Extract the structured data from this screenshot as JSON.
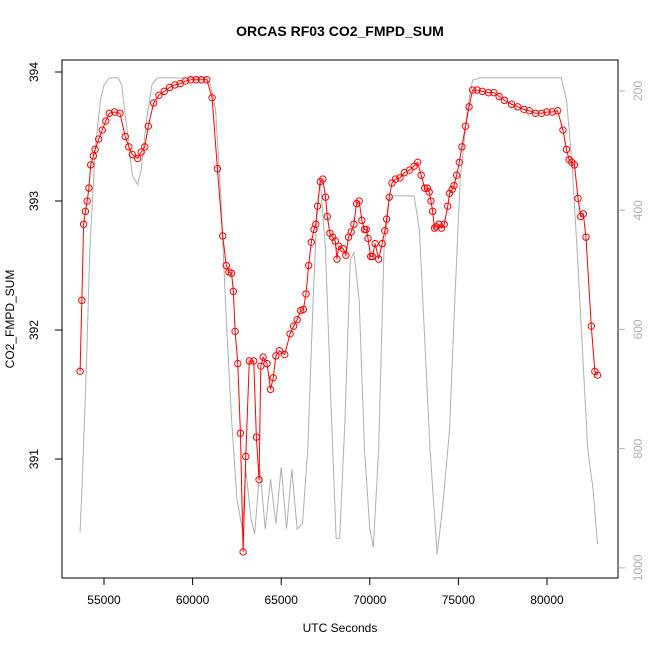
{
  "chart_data": {
    "type": "line",
    "title": "ORCAS RF03 CO2_FMPD_SUM",
    "xlabel": "UTC Seconds",
    "ylabel": "CO2_FMPD_SUM",
    "xlim": [
      52630,
      84007
    ],
    "ylim": [
      390.078,
      394.093
    ],
    "y2lim": [
      1017,
      148
    ],
    "xticks": [
      55000,
      60000,
      65000,
      70000,
      75000,
      80000
    ],
    "yticks": [
      391,
      392,
      393,
      394
    ],
    "y2ticks": [
      200,
      400,
      600,
      800,
      1000
    ],
    "series": [
      {
        "color": "#b0b0b0",
        "axis": "y2",
        "x": [
          53650,
          53800,
          54000,
          54200,
          54500,
          54800,
          55000,
          55300,
          55800,
          56000,
          56300,
          56600,
          56900,
          57100,
          57400,
          57700,
          58000,
          60800,
          61000,
          61300,
          61600,
          61900,
          62200,
          62500,
          62800,
          63000,
          63300,
          63500,
          63800,
          64100,
          64400,
          64700,
          65000,
          65300,
          65600,
          65900,
          66200,
          66500,
          66800,
          67000,
          67200,
          67500,
          67800,
          68100,
          68300,
          68600,
          68900,
          69100,
          69400,
          69700,
          70000,
          70200,
          70500,
          70800,
          71100,
          71300,
          72500,
          72800,
          73100,
          73400,
          73800,
          74100,
          74500,
          74800,
          75100,
          75500,
          75800,
          76200,
          80800,
          81100,
          81400,
          81700,
          82000,
          82300,
          82600,
          82850
        ],
        "values": [
          940,
          834,
          667,
          466,
          299,
          215,
          190,
          178,
          178,
          190,
          265,
          341,
          357,
          332,
          249,
          190,
          178,
          178,
          190,
          232,
          382,
          583,
          751,
          884,
          935,
          834,
          918,
          943,
          834,
          935,
          851,
          926,
          831,
          935,
          834,
          935,
          926,
          801,
          550,
          416,
          349,
          466,
          717,
          951,
          951,
          751,
          483,
          471,
          550,
          801,
          935,
          965,
          801,
          466,
          382,
          376,
          376,
          433,
          617,
          801,
          977,
          901,
          768,
          550,
          349,
          232,
          182,
          178,
          178,
          215,
          316,
          466,
          634,
          801,
          868,
          960
        ]
      },
      {
        "name": "CO2_FMPD_SUM",
        "color": "#ff0000",
        "axis": "y",
        "marker": "circle",
        "x": [
          53650,
          53750,
          53850,
          53950,
          54050,
          54150,
          54250,
          54400,
          54500,
          54700,
          54900,
          55100,
          55300,
          55600,
          55900,
          56200,
          56400,
          56600,
          56900,
          57100,
          57300,
          57500,
          57800,
          58100,
          58400,
          58700,
          59000,
          59300,
          59600,
          59900,
          60200,
          60500,
          60800,
          61100,
          61400,
          61700,
          61900,
          62050,
          62200,
          62300,
          62400,
          62550,
          62700,
          62850,
          63000,
          63200,
          63450,
          63600,
          63750,
          63850,
          63980,
          64200,
          64400,
          64550,
          64700,
          64900,
          65200,
          65500,
          65700,
          65900,
          66100,
          66250,
          66400,
          66550,
          66700,
          66850,
          66950,
          67050,
          67200,
          67350,
          67500,
          67600,
          67750,
          67900,
          68050,
          68150,
          68250,
          68500,
          68650,
          68800,
          68950,
          69100,
          69250,
          69400,
          69550,
          69700,
          69800,
          69900,
          70050,
          70150,
          70300,
          70500,
          70700,
          70850,
          70950,
          71100,
          71250,
          71450,
          71700,
          71950,
          72250,
          72500,
          72700,
          72900,
          73100,
          73250,
          73350,
          73450,
          73550,
          73650,
          73750,
          73900,
          74050,
          74200,
          74400,
          74500,
          74650,
          74750,
          74900,
          75050,
          75200,
          75400,
          75600,
          75800,
          76050,
          76350,
          76700,
          77000,
          77300,
          77600,
          78000,
          78350,
          78700,
          79000,
          79350,
          79700,
          80000,
          80300,
          80600,
          80900,
          81100,
          81250,
          81400,
          81550,
          81750,
          81900,
          82050,
          82200,
          82500,
          82700,
          82850
        ],
        "values": [
          391.68,
          392.23,
          392.82,
          392.92,
          393.0,
          393.1,
          393.28,
          393.35,
          393.4,
          393.48,
          393.55,
          393.62,
          393.68,
          393.69,
          393.68,
          393.5,
          393.42,
          393.36,
          393.33,
          393.38,
          393.42,
          393.58,
          393.76,
          393.82,
          393.85,
          393.88,
          393.9,
          393.91,
          393.93,
          393.94,
          393.94,
          393.94,
          393.94,
          393.8,
          393.25,
          392.73,
          392.5,
          392.45,
          392.44,
          392.3,
          391.99,
          391.74,
          391.2,
          390.28,
          391.02,
          391.76,
          391.76,
          391.17,
          390.84,
          391.72,
          391.79,
          391.74,
          391.54,
          391.63,
          391.8,
          391.84,
          391.81,
          391.97,
          392.03,
          392.08,
          392.15,
          392.16,
          392.28,
          392.5,
          392.68,
          392.78,
          392.82,
          392.96,
          393.15,
          393.17,
          393.03,
          392.88,
          392.75,
          392.72,
          392.69,
          392.55,
          392.65,
          392.63,
          392.58,
          392.72,
          392.76,
          392.82,
          392.98,
          393.0,
          392.85,
          392.78,
          392.78,
          392.71,
          392.57,
          392.57,
          392.67,
          392.55,
          392.67,
          392.77,
          392.86,
          393.03,
          393.14,
          393.17,
          393.18,
          393.22,
          393.24,
          393.27,
          393.3,
          393.2,
          393.1,
          393.1,
          393.07,
          393.0,
          392.92,
          392.79,
          392.8,
          392.82,
          392.79,
          392.82,
          392.96,
          393.06,
          393.09,
          393.12,
          393.2,
          393.3,
          393.42,
          393.58,
          393.73,
          393.86,
          393.86,
          393.85,
          393.84,
          393.84,
          393.81,
          393.78,
          393.75,
          393.73,
          393.71,
          393.7,
          393.68,
          393.68,
          393.69,
          393.69,
          393.7,
          393.55,
          393.4,
          393.32,
          393.3,
          393.28,
          393.02,
          392.88,
          392.9,
          392.72,
          392.03,
          391.68,
          391.65
        ]
      }
    ]
  }
}
